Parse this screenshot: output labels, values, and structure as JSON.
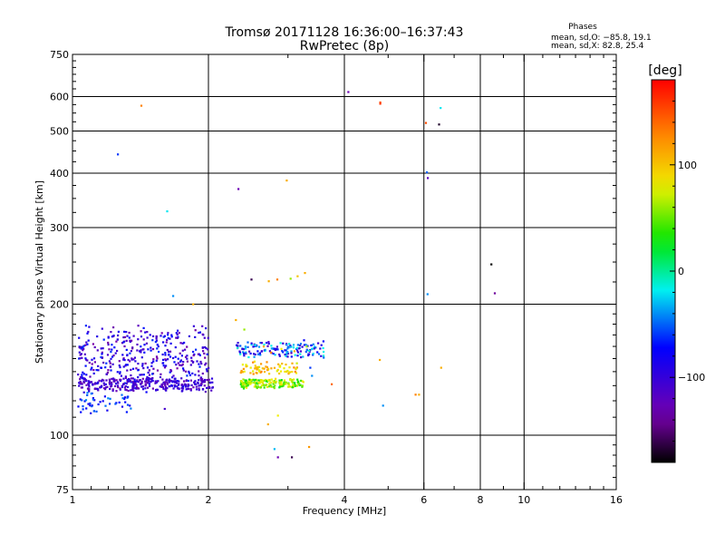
{
  "chart_data": {
    "type": "scatter",
    "title": "Tromsø 20171128 16:36:00–16:37:43",
    "subtitle": "RwPretec (8p)",
    "xlabel": "Frequency [MHz]",
    "ylabel": "Stationary phase Virtual Height [km]",
    "x_scale": "log",
    "y_scale": "log",
    "xlim": [
      1,
      16
    ],
    "ylim": [
      75,
      750
    ],
    "x_ticks": [
      1,
      2,
      4,
      6,
      8,
      10,
      16
    ],
    "x_tick_labels": [
      "1",
      "2",
      "4",
      "6",
      "8",
      "10",
      "16"
    ],
    "y_ticks": [
      75,
      100,
      200,
      300,
      400,
      500,
      600,
      750
    ],
    "y_tick_labels": [
      "75",
      "100",
      "200",
      "300",
      "400",
      "500",
      "600",
      "750"
    ],
    "grid_x": [
      2,
      4,
      6,
      8,
      10
    ],
    "grid_y": [
      100,
      200,
      300,
      400,
      500,
      600
    ],
    "grid": true,
    "phase_stats": {
      "heading": "Phases",
      "line_o": "mean, sd,O: −85.8, 19.1",
      "line_x": "mean, sd,X:  82.8, 25.4"
    },
    "colorbar": {
      "label": "[deg]",
      "min": -180,
      "max": 180,
      "ticks": [
        100,
        0,
        -100
      ],
      "tick_labels": [
        "100",
        "0",
        "−100"
      ]
    },
    "points": [
      [
        1.42,
        572,
        130
      ],
      [
        1.26,
        442,
        -60
      ],
      [
        1.62,
        327,
        -20
      ],
      [
        1.67,
        209,
        -40
      ],
      [
        1.85,
        200,
        110
      ],
      [
        2.33,
        368,
        -130
      ],
      [
        2.49,
        228,
        -160
      ],
      [
        2.72,
        226,
        110
      ],
      [
        2.84,
        228,
        130
      ],
      [
        2.98,
        385,
        110
      ],
      [
        3.04,
        229,
        60
      ],
      [
        3.15,
        232,
        100
      ],
      [
        3.27,
        236,
        110
      ],
      [
        4.08,
        615,
        -130
      ],
      [
        4.8,
        582,
        150
      ],
      [
        4.8,
        578,
        160
      ],
      [
        6.06,
        522,
        150
      ],
      [
        6.48,
        518,
        -170
      ],
      [
        6.53,
        565,
        -20
      ],
      [
        6.09,
        402,
        -50
      ],
      [
        6.12,
        390,
        -120
      ],
      [
        6.11,
        211,
        -40
      ],
      [
        8.46,
        247,
        -180
      ],
      [
        8.61,
        212,
        -140
      ],
      [
        6.55,
        143,
        110
      ],
      [
        5.75,
        124,
        130
      ],
      [
        5.85,
        124,
        110
      ],
      [
        4.79,
        149,
        110
      ],
      [
        4.87,
        117,
        -40
      ],
      [
        3.75,
        131,
        140
      ],
      [
        3.36,
        143,
        -60
      ],
      [
        3.39,
        137,
        -40
      ],
      [
        2.85,
        111,
        80
      ],
      [
        2.71,
        106,
        110
      ],
      [
        2.8,
        93,
        -30
      ],
      [
        2.85,
        89,
        -130
      ],
      [
        3.06,
        89,
        -160
      ],
      [
        3.34,
        94,
        120
      ],
      [
        1.6,
        115,
        -110
      ],
      [
        2.3,
        184,
        110
      ],
      [
        2.4,
        175,
        60
      ],
      [
        2.65,
        160,
        110
      ],
      [
        2.75,
        155,
        130
      ],
      [
        2.9,
        158,
        80
      ],
      [
        3.1,
        156,
        110
      ],
      [
        3.3,
        160,
        60
      ]
    ],
    "clusters": [
      {
        "name_hint": "",
        "x": [
          1.02,
          2.0
        ],
        "y": [
          125,
          180
        ],
        "phase": [
          -140,
          -60
        ],
        "count": 420,
        "seed": 11
      },
      {
        "name_hint": "",
        "x": [
          1.03,
          2.05
        ],
        "y": [
          126,
          136
        ],
        "phase": [
          -130,
          -90
        ],
        "count": 260,
        "seed": 23
      },
      {
        "name_hint": "",
        "x": [
          2.35,
          3.25
        ],
        "y": [
          128,
          135
        ],
        "phase": [
          20,
          90
        ],
        "count": 180,
        "seed": 37
      },
      {
        "name_hint": "",
        "x": [
          2.35,
          3.15
        ],
        "y": [
          136,
          148
        ],
        "phase": [
          70,
          130
        ],
        "count": 70,
        "seed": 41
      },
      {
        "name_hint": "",
        "x": [
          2.3,
          3.6
        ],
        "y": [
          150,
          166
        ],
        "phase": [
          -120,
          -10
        ],
        "count": 150,
        "seed": 53
      },
      {
        "name_hint": "",
        "x": [
          1.03,
          1.35
        ],
        "y": [
          112,
          126
        ],
        "phase": [
          -90,
          -40
        ],
        "count": 50,
        "seed": 67
      }
    ]
  }
}
